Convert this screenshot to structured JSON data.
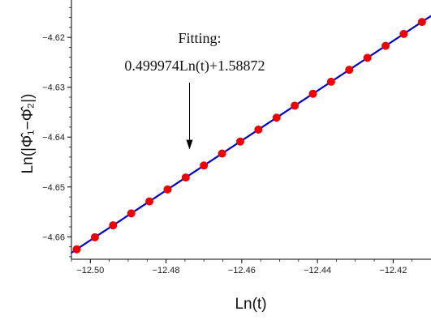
{
  "chart_data": {
    "type": "scatter",
    "title": "",
    "xlabel": "Ln(t)",
    "ylabel": "Ln(|Φ̂₁−Φ̂₂|)",
    "xlim": [
      -12.505,
      -12.41
    ],
    "ylim": [
      -4.6645,
      -4.6125
    ],
    "x_ticks": [
      -12.5,
      -12.48,
      -12.46,
      -12.44,
      -12.42
    ],
    "x_tick_labels": [
      "−12.50",
      "−12.48",
      "−12.46",
      "−12.44",
      "−12.42"
    ],
    "y_ticks": [
      -4.66,
      -4.65,
      -4.64,
      -4.63,
      -4.62
    ],
    "y_tick_labels": [
      "−4.66",
      "−4.65",
      "−4.64",
      "−4.63",
      "−4.62"
    ],
    "grid": false,
    "fit": {
      "slope": 0.499974,
      "intercept": 1.58872,
      "color": "#0000cc"
    },
    "points_color": "#ee0000",
    "series": [
      {
        "x": [
          -12.5036,
          -12.4988,
          -12.494,
          -12.4892,
          -12.4844,
          -12.4796,
          -12.4748,
          -12.47,
          -12.4652,
          -12.4604,
          -12.4556,
          -12.4508,
          -12.446,
          -12.4412,
          -12.4364,
          -12.4316,
          -12.4268,
          -12.422,
          -12.4172,
          -12.4124
        ],
        "y": [
          -4.6625,
          -4.6601,
          -4.6577,
          -4.6553,
          -4.6529,
          -4.6505,
          -4.6481,
          -4.6457,
          -4.6433,
          -4.6409,
          -4.6385,
          -4.6361,
          -4.6337,
          -4.6313,
          -4.6289,
          -4.6265,
          -4.6241,
          -4.6217,
          -4.6193,
          -4.6169
        ]
      }
    ],
    "annotation": {
      "line1": "Fitting:",
      "line2": "0.499974Ln(t)+1.58872",
      "arrow_target": [
        -12.4738,
        -4.6425
      ]
    }
  }
}
